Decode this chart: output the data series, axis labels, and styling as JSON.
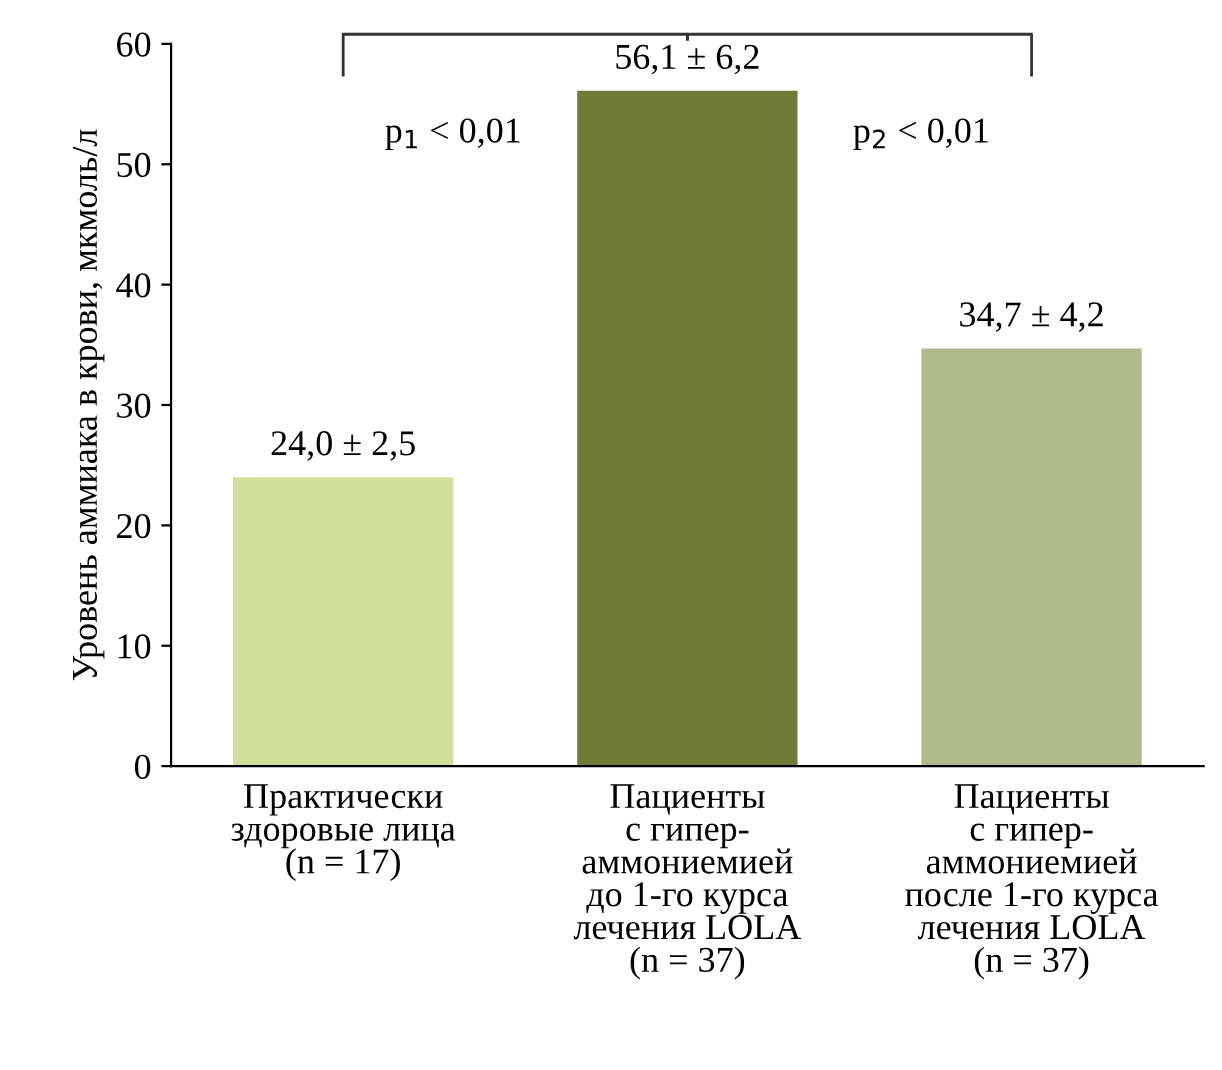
{
  "chart_data": {
    "type": "bar",
    "ylabel": "Уровень аммиака в крови, мкмоль/л",
    "categories": [
      "Практически\nздоровые лица\n(n = 17)",
      "Пациенты\nс гипер-\nаммониемией\nдо 1-го курса\nлечения LOLA\n(n = 37)",
      "Пациенты\nс гипер-\nаммониемией\nпосле 1-го курса\nлечения LOLA\n(n = 37)"
    ],
    "values": [
      24.0,
      56.1,
      34.7
    ],
    "colors": [
      "#d0df9a",
      "#6e7a35",
      "#b0b98a"
    ],
    "value_labels": [
      "24,0 ± 2,5",
      "56,1 ± 6,2",
      "34,7 ± 4,2"
    ],
    "ylim": [
      0,
      60
    ],
    "yticks": [
      0,
      10,
      20,
      30,
      40,
      50,
      60
    ],
    "grid": false,
    "legend": false,
    "annotations": [
      "p$_{1}$ < 0,01",
      "p$_{2}$ < 0,01"
    ]
  }
}
